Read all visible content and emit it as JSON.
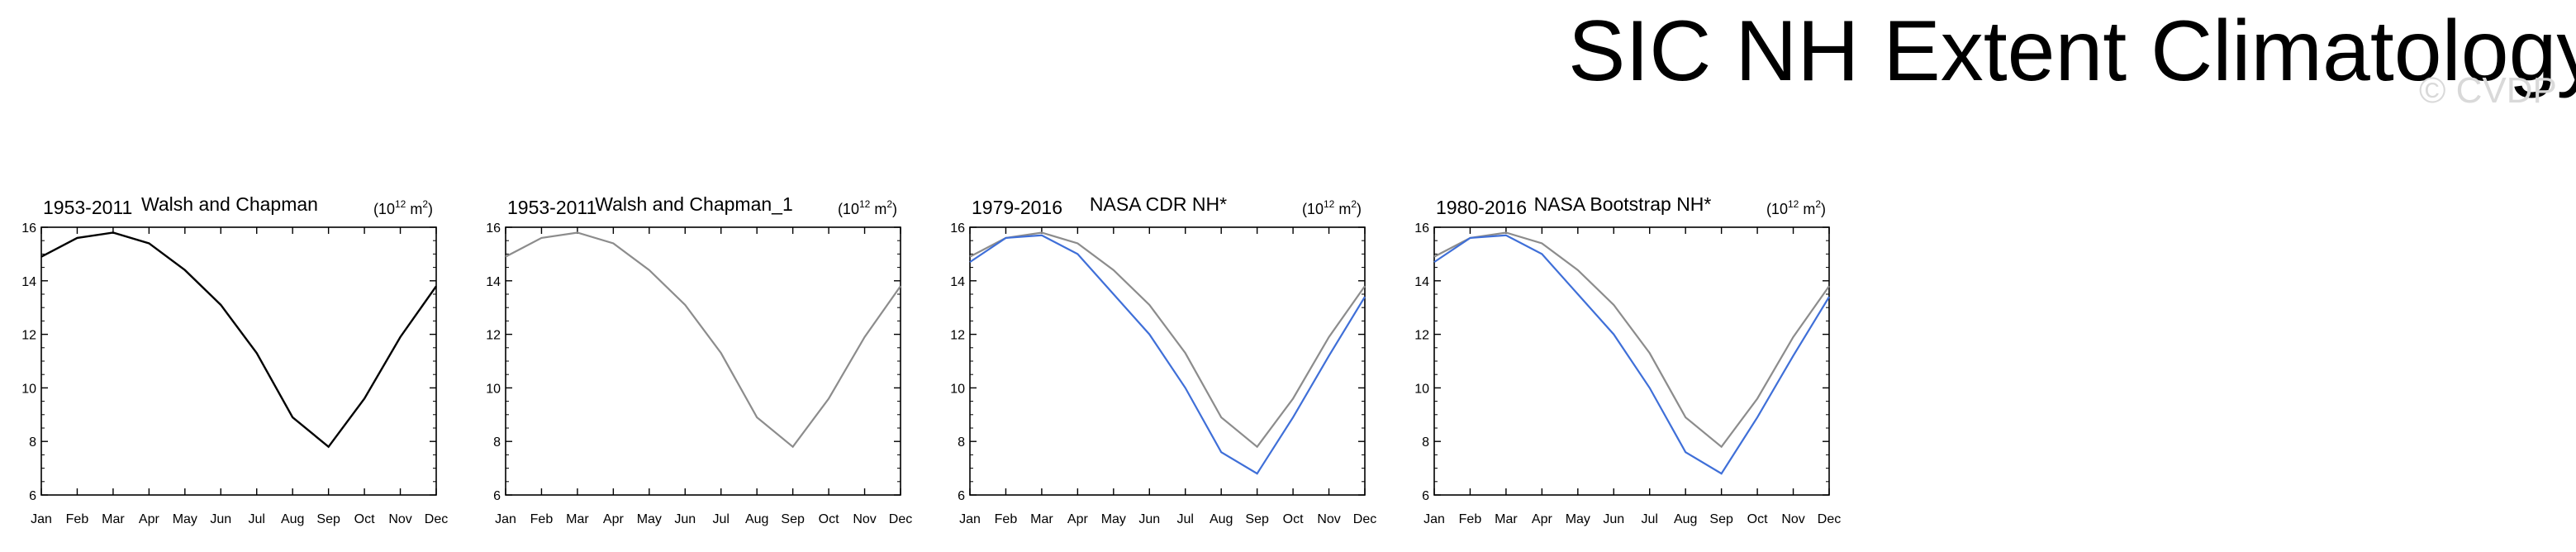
{
  "title": "SIC NH Extent Climatology",
  "watermark": "© CVDP",
  "colors": {
    "reference": "#000000",
    "reference_faded": "#8c8c8c",
    "observation": "#3f6fd8"
  },
  "chart_data": [
    {
      "type": "line",
      "period": "1953-2011",
      "dataset": "Walsh and Chapman",
      "units_base": "(10",
      "units_exp": "12",
      "units_unit": " m",
      "units_sup2": "2",
      "units_close": ")",
      "categories": [
        "Jan",
        "Feb",
        "Mar",
        "Apr",
        "May",
        "Jun",
        "Jul",
        "Aug",
        "Sep",
        "Oct",
        "Nov",
        "Dec"
      ],
      "ylim": [
        6,
        16
      ],
      "yticks": [
        "6",
        "8",
        "10",
        "12",
        "14",
        "16"
      ],
      "series": [
        {
          "name": "Walsh and Chapman",
          "color": "#000000",
          "values": [
            14.9,
            15.6,
            15.8,
            15.4,
            14.4,
            13.1,
            11.3,
            8.9,
            7.8,
            9.6,
            11.9,
            13.8
          ]
        }
      ]
    },
    {
      "type": "line",
      "period": "1953-2011",
      "dataset": "Walsh and Chapman_1",
      "units_base": "(10",
      "units_exp": "12",
      "units_unit": " m",
      "units_sup2": "2",
      "units_close": ")",
      "categories": [
        "Jan",
        "Feb",
        "Mar",
        "Apr",
        "May",
        "Jun",
        "Jul",
        "Aug",
        "Sep",
        "Oct",
        "Nov",
        "Dec"
      ],
      "ylim": [
        6,
        16
      ],
      "yticks": [
        "6",
        "8",
        "10",
        "12",
        "14",
        "16"
      ],
      "series": [
        {
          "name": "Walsh and Chapman_1",
          "color": "#8c8c8c",
          "values": [
            14.9,
            15.6,
            15.8,
            15.4,
            14.4,
            13.1,
            11.3,
            8.9,
            7.8,
            9.6,
            11.9,
            13.8
          ]
        }
      ]
    },
    {
      "type": "line",
      "period": "1979-2016",
      "dataset": "NASA CDR NH*",
      "units_base": "(10",
      "units_exp": "12",
      "units_unit": " m",
      "units_sup2": "2",
      "units_close": ")",
      "categories": [
        "Jan",
        "Feb",
        "Mar",
        "Apr",
        "May",
        "Jun",
        "Jul",
        "Aug",
        "Sep",
        "Oct",
        "Nov",
        "Dec"
      ],
      "ylim": [
        6,
        16
      ],
      "yticks": [
        "6",
        "8",
        "10",
        "12",
        "14",
        "16"
      ],
      "series": [
        {
          "name": "Walsh and Chapman",
          "color": "#8c8c8c",
          "values": [
            14.9,
            15.6,
            15.8,
            15.4,
            14.4,
            13.1,
            11.3,
            8.9,
            7.8,
            9.6,
            11.9,
            13.8
          ]
        },
        {
          "name": "NASA CDR NH*",
          "color": "#3f6fd8",
          "values": [
            14.7,
            15.6,
            15.7,
            15.0,
            13.5,
            12.0,
            10.0,
            7.6,
            6.8,
            8.9,
            11.2,
            13.4
          ]
        }
      ]
    },
    {
      "type": "line",
      "period": "1980-2016",
      "dataset": "NASA Bootstrap NH*",
      "units_base": "(10",
      "units_exp": "12",
      "units_unit": " m",
      "units_sup2": "2",
      "units_close": ")",
      "categories": [
        "Jan",
        "Feb",
        "Mar",
        "Apr",
        "May",
        "Jun",
        "Jul",
        "Aug",
        "Sep",
        "Oct",
        "Nov",
        "Dec"
      ],
      "ylim": [
        6,
        16
      ],
      "yticks": [
        "6",
        "8",
        "10",
        "12",
        "14",
        "16"
      ],
      "series": [
        {
          "name": "Walsh and Chapman",
          "color": "#8c8c8c",
          "values": [
            14.9,
            15.6,
            15.8,
            15.4,
            14.4,
            13.1,
            11.3,
            8.9,
            7.8,
            9.6,
            11.9,
            13.8
          ]
        },
        {
          "name": "NASA Bootstrap NH*",
          "color": "#3f6fd8",
          "values": [
            14.7,
            15.6,
            15.7,
            15.0,
            13.5,
            12.0,
            10.0,
            7.6,
            6.8,
            8.9,
            11.2,
            13.4
          ]
        }
      ]
    }
  ]
}
